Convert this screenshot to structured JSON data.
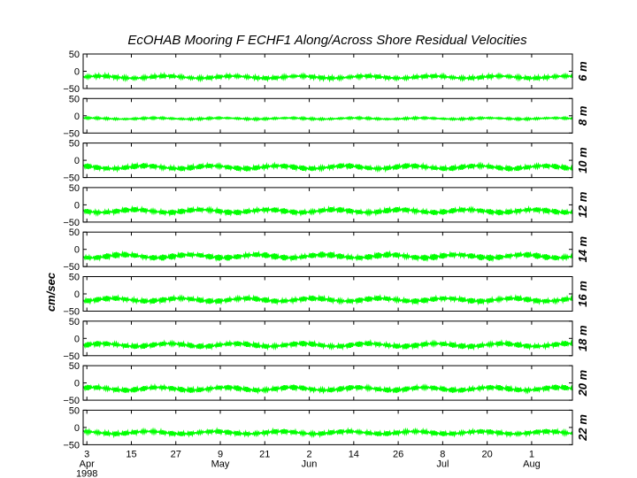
{
  "chart_data": {
    "type": "area",
    "title": "EcOHAB Mooring F   ECHF1   Along/Across Shore Residual Velocities",
    "ylabel": "cm/sec",
    "ylim": [
      -50,
      50
    ],
    "yticks": [
      "50",
      "0",
      "−50"
    ],
    "x_day_labels": [
      "3",
      "15",
      "27",
      "9",
      "21",
      "2",
      "14",
      "26",
      "8",
      "20",
      "1"
    ],
    "x_month_labels": [
      "Apr",
      "May",
      "Jun",
      "Jul",
      "Aug"
    ],
    "x_year_label": "1998",
    "x_tick_dates": [
      "1998-04-03",
      "1998-04-15",
      "1998-04-27",
      "1998-05-09",
      "1998-05-21",
      "1998-06-02",
      "1998-06-14",
      "1998-06-26",
      "1998-07-08",
      "1998-07-20",
      "1998-08-01"
    ],
    "xlim": [
      "1998-04-02",
      "1998-08-12"
    ],
    "grid": false,
    "series_color": "#00ff00",
    "panels": [
      {
        "name": "6 m",
        "mean": -17,
        "amp": 6
      },
      {
        "name": "8 m",
        "mean": -8,
        "amp": 3
      },
      {
        "name": "10 m",
        "mean": -20,
        "amp": 8
      },
      {
        "name": "12 m",
        "mean": -18,
        "amp": 8
      },
      {
        "name": "14 m",
        "mean": -20,
        "amp": 9
      },
      {
        "name": "16 m",
        "mean": -17,
        "amp": 8
      },
      {
        "name": "18 m",
        "mean": -19,
        "amp": 8
      },
      {
        "name": "20 m",
        "mean": -17,
        "amp": 8
      },
      {
        "name": "22 m",
        "mean": -15,
        "amp": 7
      }
    ]
  }
}
